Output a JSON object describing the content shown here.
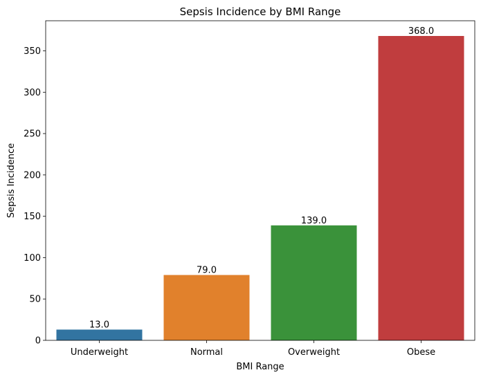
{
  "chart_data": {
    "type": "bar",
    "title": "Sepsis Incidence by BMI Range",
    "xlabel": "BMI Range",
    "ylabel": "Sepsis Incidence",
    "categories": [
      "Underweight",
      "Normal",
      "Overweight",
      "Obese"
    ],
    "values": [
      13.0,
      79.0,
      139.0,
      368.0
    ],
    "value_labels": [
      "13.0",
      "79.0",
      "139.0",
      "368.0"
    ],
    "colors": [
      "#3274a1",
      "#e1812c",
      "#3a923a",
      "#c03d3e"
    ],
    "ylim": [
      0,
      386.4
    ],
    "yticks": [
      0,
      50,
      100,
      150,
      200,
      250,
      300,
      350
    ],
    "grid": false,
    "legend": "none"
  }
}
